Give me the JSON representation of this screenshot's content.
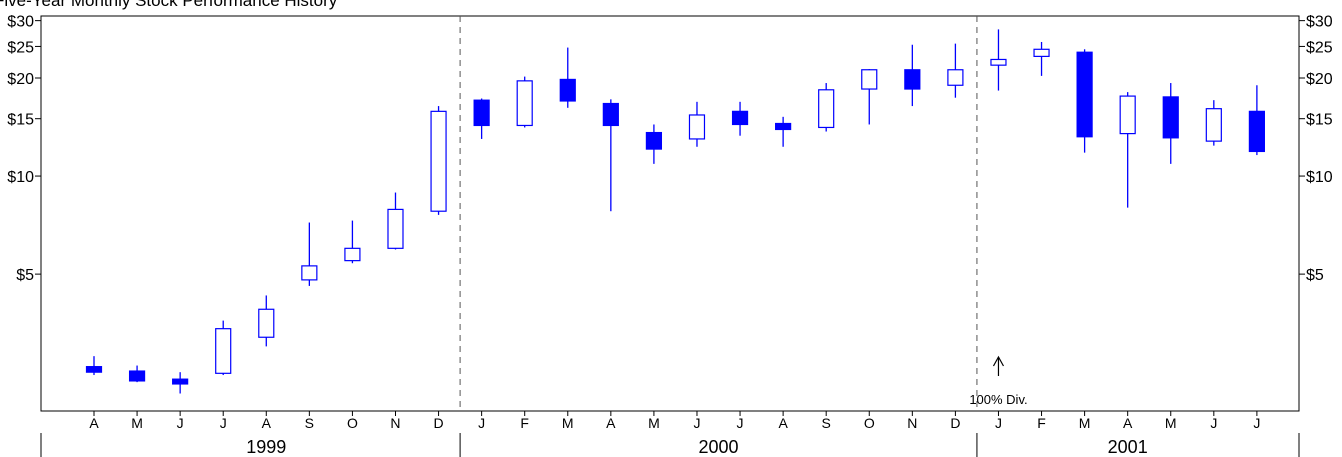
{
  "chart_data": {
    "type": "candlestick",
    "title": "Five-Year Monthly Stock Performance History",
    "y_scale": "log",
    "ylim": [
      1.9,
      31
    ],
    "y_ticks": [
      {
        "value": 30,
        "label": "$30"
      },
      {
        "value": 25,
        "label": "$25"
      },
      {
        "value": 20,
        "label": "$20"
      },
      {
        "value": 15,
        "label": "$15"
      },
      {
        "value": 10,
        "label": "$10"
      },
      {
        "value": 5,
        "label": "$5"
      }
    ],
    "colors": {
      "up_fill": "#ffffff",
      "down_fill": "#0000ff",
      "candle_line": "#0000ff",
      "axis": "#000000"
    },
    "years": [
      {
        "label": "1999",
        "months": 9
      },
      {
        "label": "2000",
        "months": 12
      },
      {
        "label": "2001",
        "months": 7
      }
    ],
    "candles": [
      {
        "month": "A",
        "open": 2.6,
        "close": 2.5,
        "high": 2.8,
        "low": 2.45
      },
      {
        "month": "M",
        "open": 2.52,
        "close": 2.35,
        "high": 2.62,
        "low": 2.33
      },
      {
        "month": "J",
        "open": 2.38,
        "close": 2.3,
        "high": 2.5,
        "low": 2.15
      },
      {
        "month": "J",
        "open": 2.48,
        "close": 3.4,
        "high": 3.6,
        "low": 2.45
      },
      {
        "month": "A",
        "open": 3.2,
        "close": 3.9,
        "high": 4.3,
        "low": 3.0
      },
      {
        "month": "S",
        "open": 4.8,
        "close": 5.3,
        "high": 7.2,
        "low": 4.6
      },
      {
        "month": "O",
        "open": 5.5,
        "close": 6.0,
        "high": 7.3,
        "low": 5.4
      },
      {
        "month": "N",
        "open": 6.0,
        "close": 7.9,
        "high": 8.9,
        "low": 5.95
      },
      {
        "month": "D",
        "open": 7.8,
        "close": 15.8,
        "high": 16.4,
        "low": 7.6
      },
      {
        "month": "J",
        "open": 17.1,
        "close": 14.3,
        "high": 17.3,
        "low": 13.0
      },
      {
        "month": "F",
        "open": 14.3,
        "close": 19.6,
        "high": 20.2,
        "low": 14.1
      },
      {
        "month": "M",
        "open": 19.8,
        "close": 17.0,
        "high": 24.8,
        "low": 16.2
      },
      {
        "month": "A",
        "open": 16.7,
        "close": 14.3,
        "high": 17.2,
        "low": 7.8
      },
      {
        "month": "M",
        "open": 13.6,
        "close": 12.1,
        "high": 14.4,
        "low": 10.9
      },
      {
        "month": "J",
        "open": 13.0,
        "close": 15.4,
        "high": 16.9,
        "low": 12.3
      },
      {
        "month": "J",
        "open": 15.8,
        "close": 14.4,
        "high": 16.9,
        "low": 13.3
      },
      {
        "month": "A",
        "open": 14.5,
        "close": 13.9,
        "high": 15.2,
        "low": 12.3
      },
      {
        "month": "S",
        "open": 14.1,
        "close": 18.4,
        "high": 19.3,
        "low": 13.7
      },
      {
        "month": "O",
        "open": 18.5,
        "close": 21.2,
        "high": 21.3,
        "low": 14.4
      },
      {
        "month": "N",
        "open": 21.2,
        "close": 18.5,
        "high": 25.3,
        "low": 16.4
      },
      {
        "month": "D",
        "open": 19.0,
        "close": 21.2,
        "high": 25.5,
        "low": 17.4
      },
      {
        "month": "J",
        "open": 21.9,
        "close": 22.8,
        "high": 28.2,
        "low": 18.3
      },
      {
        "month": "F",
        "open": 23.3,
        "close": 24.5,
        "high": 25.8,
        "low": 20.3
      },
      {
        "month": "M",
        "open": 24.0,
        "close": 13.2,
        "high": 24.5,
        "low": 11.8
      },
      {
        "month": "A",
        "open": 13.5,
        "close": 17.6,
        "high": 18.1,
        "low": 8.0
      },
      {
        "month": "M",
        "open": 17.5,
        "close": 13.1,
        "high": 19.3,
        "low": 10.9
      },
      {
        "month": "J",
        "open": 12.8,
        "close": 16.1,
        "high": 17.1,
        "low": 12.4
      },
      {
        "month": "J",
        "open": 15.8,
        "close": 11.9,
        "high": 19.0,
        "low": 11.6
      }
    ],
    "annotations": [
      {
        "text": "100% Div.",
        "at_candle_index": 21
      }
    ]
  }
}
